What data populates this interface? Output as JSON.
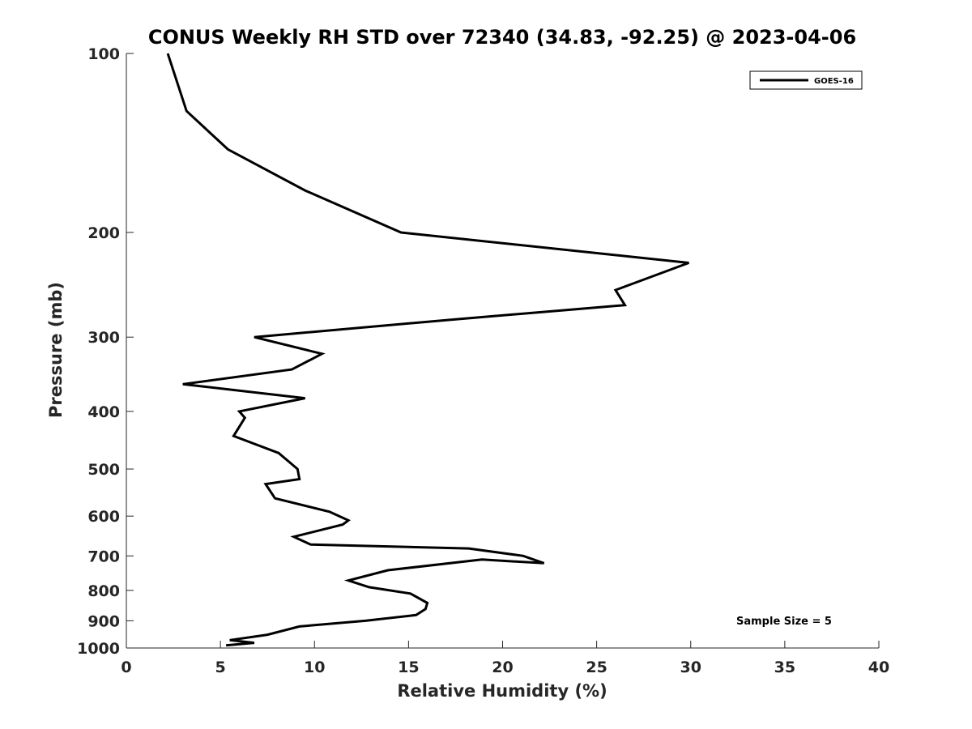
{
  "chart_data": {
    "type": "line",
    "title": "CONUS Weekly RH STD over 72340 (34.83, -92.25) @ 2023-04-06",
    "xlabel": "Relative Humidity (%)",
    "ylabel": "Pressure (mb)",
    "xlim": [
      0,
      40
    ],
    "ylim": [
      100,
      1000
    ],
    "y_scale": "log",
    "y_reversed": true,
    "grid": false,
    "legend_position": "top-right",
    "x_ticks": [
      0,
      5,
      10,
      15,
      20,
      25,
      30,
      35,
      40
    ],
    "y_ticks": [
      100,
      200,
      300,
      400,
      500,
      600,
      700,
      800,
      900,
      1000
    ],
    "series": [
      {
        "name": "GOES-16",
        "color": "#000000",
        "x": [
          2.2,
          3.2,
          5.4,
          9.5,
          14.6,
          29.9,
          26.0,
          26.5,
          17.5,
          6.8,
          10.4,
          8.8,
          3.0,
          9.5,
          6.0,
          6.3,
          5.7,
          8.1,
          9.1,
          9.2,
          7.4,
          7.9,
          10.8,
          11.8,
          11.5,
          8.9,
          9.8,
          18.2,
          21.1,
          22.2,
          18.9,
          13.9,
          11.8,
          12.9,
          15.1,
          16.0,
          15.9,
          15.4,
          12.7,
          9.2,
          7.5,
          5.5,
          6.8,
          5.3
        ],
        "y": [
          100,
          125,
          145,
          170,
          200,
          225,
          250,
          265,
          280,
          300,
          320,
          340,
          360,
          380,
          400,
          410,
          440,
          470,
          500,
          520,
          530,
          560,
          590,
          610,
          620,
          650,
          670,
          680,
          700,
          720,
          710,
          740,
          770,
          790,
          810,
          840,
          860,
          880,
          900,
          920,
          950,
          970,
          980,
          990
        ]
      }
    ],
    "annotations": [
      "Sample Size = 5"
    ]
  }
}
